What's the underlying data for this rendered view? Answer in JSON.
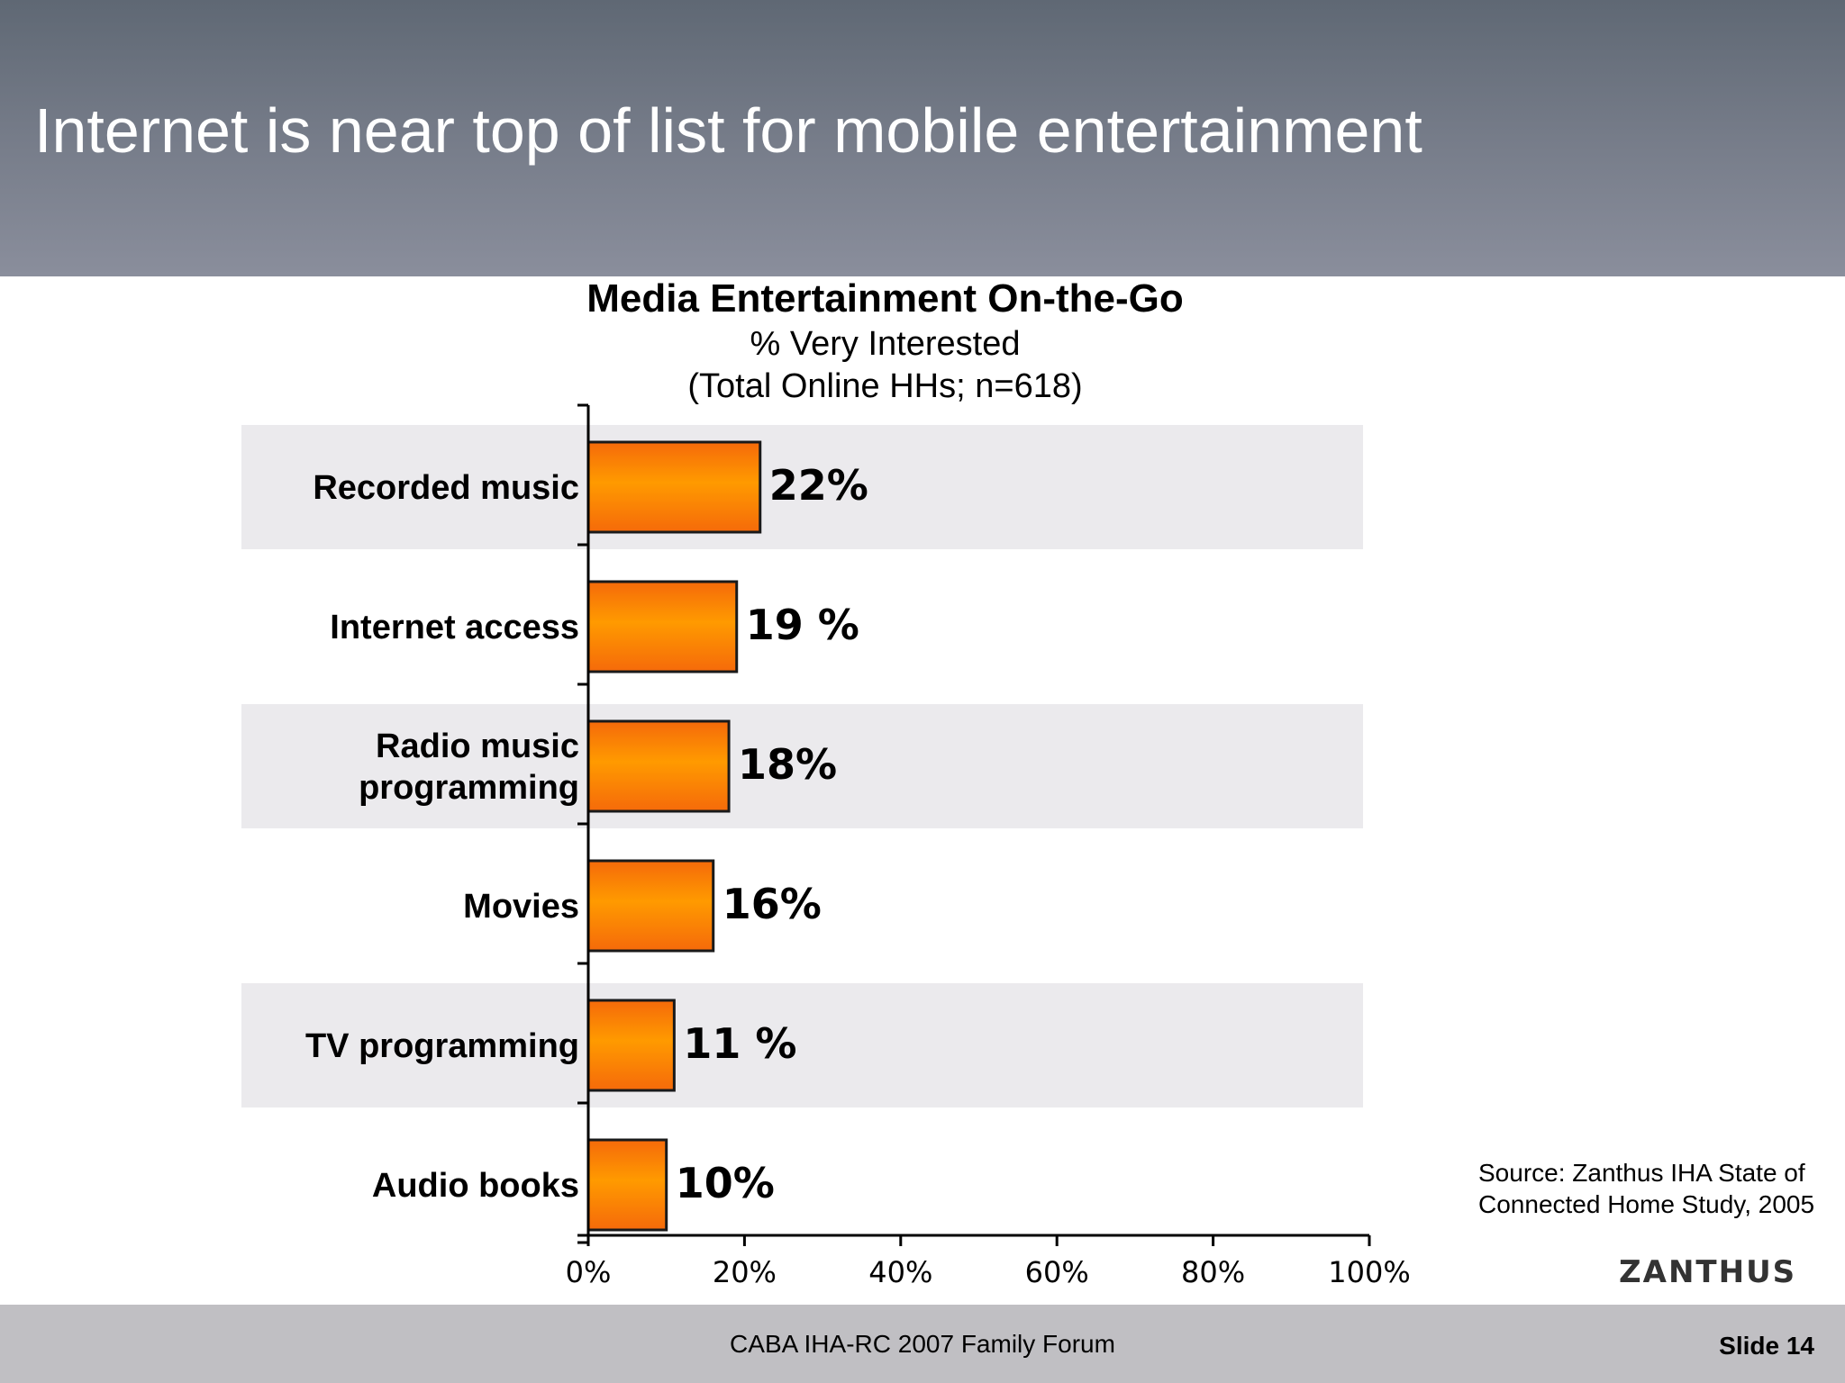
{
  "slide": {
    "title": "Internet is near top of list for mobile entertainment",
    "source": "Source: Zanthus IHA State of Connected Home Study, 2005",
    "logo": "ZANTHUS",
    "footer": "CABA IHA-RC 2007 Family Forum",
    "slide_number": "Slide 14"
  },
  "chart_data": {
    "type": "bar",
    "orientation": "horizontal",
    "title": "Media Entertainment On-the-Go",
    "subtitle_lines": [
      "% Very Interested",
      "(Total Online HHs; n=618)"
    ],
    "categories": [
      "Recorded music",
      "Internet access",
      "Radio music programming",
      "Movies",
      "TV programming",
      "Audio books"
    ],
    "category_lines": [
      [
        "Recorded music"
      ],
      [
        "Internet access"
      ],
      [
        "Radio music",
        "programming"
      ],
      [
        "Movies"
      ],
      [
        "TV programming"
      ],
      [
        "Audio books"
      ]
    ],
    "values": [
      22,
      19,
      18,
      16,
      11,
      10
    ],
    "data_labels": [
      "22%",
      "19 %",
      "18%",
      "16%",
      "11 %",
      "10%"
    ],
    "xlim": [
      0,
      100
    ],
    "x_ticks": [
      0,
      20,
      40,
      60,
      80,
      100
    ],
    "x_tick_labels": [
      "0%",
      "20%",
      "40%",
      "60%",
      "80%",
      "100%"
    ],
    "alternating_row_bands": true,
    "colors": {
      "bar_light": "#ff9a00",
      "bar_dark": "#f56a0a",
      "bar_stroke": "#1a1a1a",
      "band": "#ebeaed"
    }
  }
}
